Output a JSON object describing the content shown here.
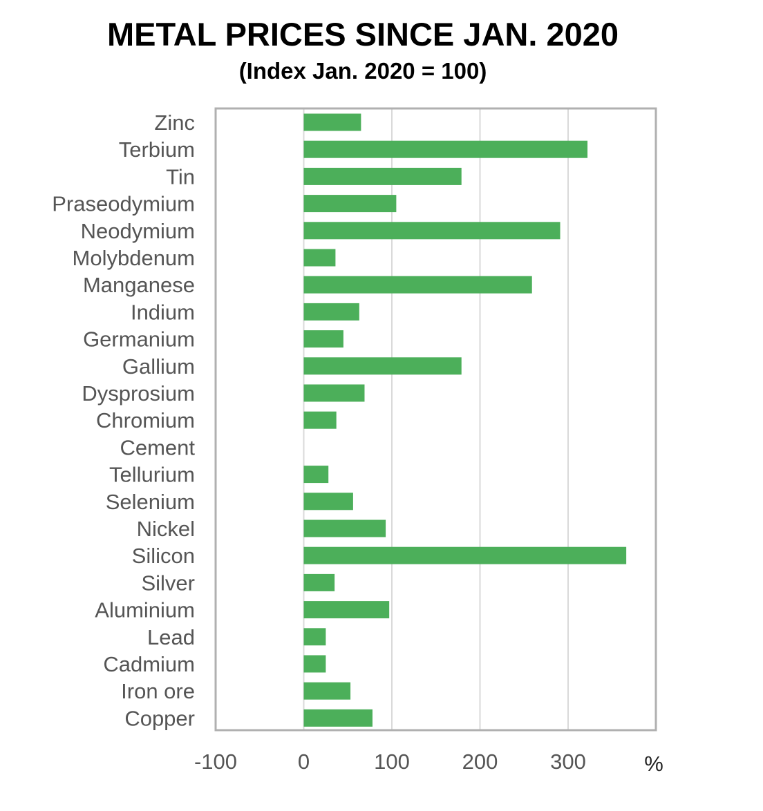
{
  "chart_data": {
    "type": "bar",
    "orientation": "horizontal",
    "title": "METAL PRICES SINCE JAN. 2020",
    "subtitle": "(Index Jan. 2020 = 100)",
    "xlabel": "%",
    "ylabel": "",
    "xlim": [
      -100,
      400
    ],
    "xticks": [
      -100,
      0,
      100,
      200,
      300
    ],
    "grid": true,
    "bar_color": "#4caf5a",
    "categories": [
      "Zinc",
      "Terbium",
      "Tin",
      "Praseodymium",
      "Neodymium",
      "Molybdenum",
      "Manganese",
      "Indium",
      "Germanium",
      "Gallium",
      "Dysprosium",
      "Chromium",
      "Cement",
      "Tellurium",
      "Selenium",
      "Nickel",
      "Silicon",
      "Silver",
      "Aluminium",
      "Lead",
      "Cadmium",
      "Iron ore",
      "Copper"
    ],
    "values": [
      65,
      322,
      179,
      105,
      291,
      36,
      259,
      63,
      45,
      179,
      69,
      37,
      0,
      28,
      56,
      93,
      366,
      35,
      97,
      25,
      25,
      53,
      78
    ]
  }
}
